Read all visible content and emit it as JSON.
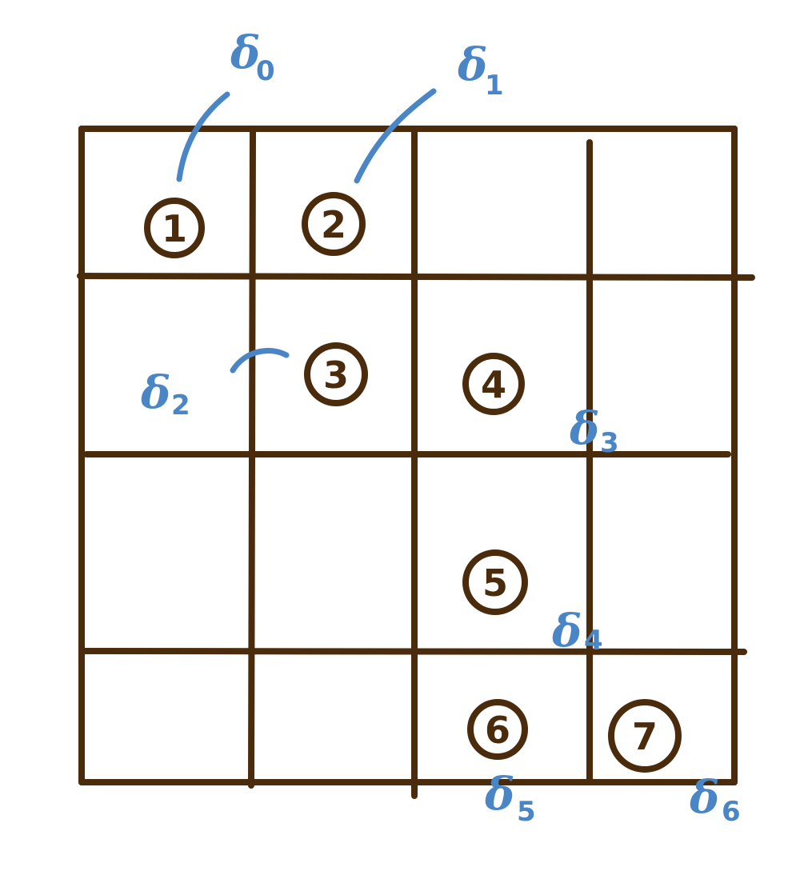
{
  "colors": {
    "grid": "#4a2b0c",
    "accent": "#4a86c5",
    "background": "#ffffff"
  },
  "grid": {
    "rows": 4,
    "cols": 4
  },
  "cells": [
    {
      "label": "1",
      "row": 1,
      "col": 1
    },
    {
      "label": "2",
      "row": 1,
      "col": 2
    },
    {
      "label": "3",
      "row": 2,
      "col": 2
    },
    {
      "label": "4",
      "row": 2,
      "col": 3
    },
    {
      "label": "5",
      "row": 3,
      "col": 3
    },
    {
      "label": "6",
      "row": 4,
      "col": 3
    },
    {
      "label": "7",
      "row": 4,
      "col": 4
    }
  ],
  "deltas": [
    {
      "symbol": "δ",
      "subscript": "0"
    },
    {
      "symbol": "δ",
      "subscript": "1"
    },
    {
      "symbol": "δ",
      "subscript": "2"
    },
    {
      "symbol": "δ",
      "subscript": "3"
    },
    {
      "symbol": "δ",
      "subscript": "4"
    },
    {
      "symbol": "δ",
      "subscript": "5"
    },
    {
      "symbol": "δ",
      "subscript": "6"
    }
  ]
}
